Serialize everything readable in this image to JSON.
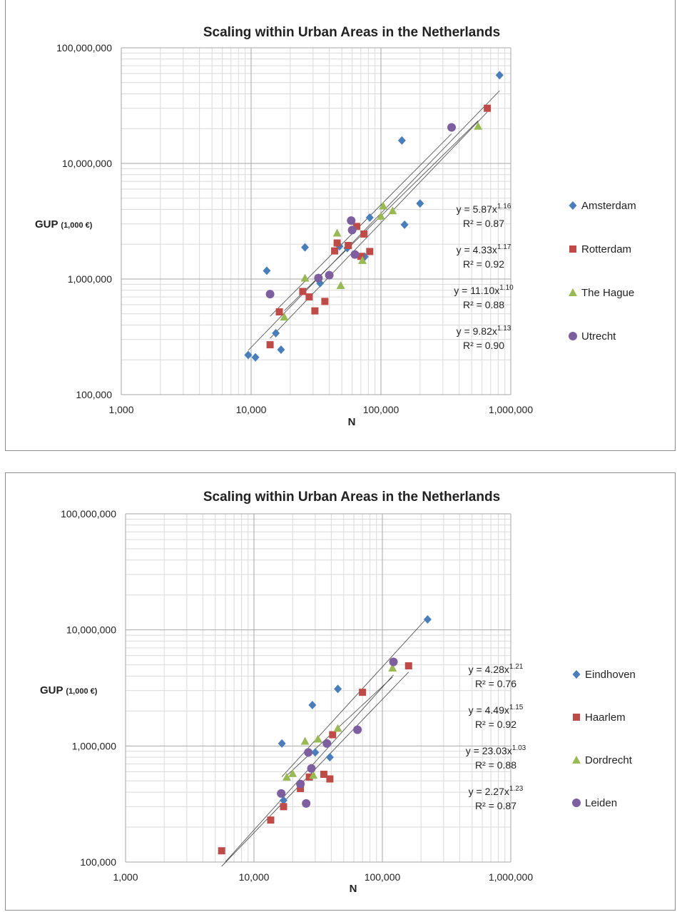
{
  "chart_data": [
    {
      "type": "scatter",
      "title": "Scaling within Urban Areas in the Netherlands",
      "xlabel": "N",
      "ylabel": "GUP",
      "ylabel_unit": "(1,000 €)",
      "xscale": "log",
      "yscale": "log",
      "xlim": [
        1000,
        1000000
      ],
      "ylim": [
        100000,
        100000000
      ],
      "x_ticks": [
        "1,000",
        "10,000",
        "100,000",
        "1,000,000"
      ],
      "y_ticks": [
        "100,000",
        "1,000,000",
        "10,000,000",
        "100,000,000"
      ],
      "grid": true,
      "legend_position": "right",
      "series": [
        {
          "name": "Amsterdam",
          "marker": "diamond",
          "color": "#4a7ebb",
          "points": [
            [
              9500,
              220000
            ],
            [
              10800,
              210000
            ],
            [
              13200,
              1180000
            ],
            [
              15500,
              340000
            ],
            [
              17000,
              245000
            ],
            [
              26000,
              1880000
            ],
            [
              34000,
              920000
            ],
            [
              48000,
              1920000
            ],
            [
              55000,
              1850000
            ],
            [
              75000,
              1560000
            ],
            [
              82000,
              3400000
            ],
            [
              145000,
              15800000
            ],
            [
              152000,
              2950000
            ],
            [
              200000,
              4500000
            ],
            [
              820000,
              58000000
            ]
          ]
        },
        {
          "name": "Rotterdam",
          "marker": "square",
          "color": "#be4b48",
          "points": [
            [
              14000,
              270000
            ],
            [
              16500,
              520000
            ],
            [
              25000,
              780000
            ],
            [
              28000,
              700000
            ],
            [
              31000,
              530000
            ],
            [
              37000,
              640000
            ],
            [
              44000,
              1750000
            ],
            [
              46000,
              2050000
            ],
            [
              56000,
              1950000
            ],
            [
              65000,
              2850000
            ],
            [
              70000,
              1570000
            ],
            [
              74000,
              2450000
            ],
            [
              82000,
              1730000
            ],
            [
              660000,
              30000000
            ]
          ]
        },
        {
          "name": "The Hague",
          "marker": "triangle",
          "color": "#98b954",
          "points": [
            [
              18000,
              470000
            ],
            [
              26000,
              1020000
            ],
            [
              46000,
              2500000
            ],
            [
              49000,
              880000
            ],
            [
              72000,
              1450000
            ],
            [
              100000,
              3500000
            ],
            [
              104000,
              4300000
            ],
            [
              123000,
              3900000
            ],
            [
              560000,
              21000000
            ]
          ]
        },
        {
          "name": "Utrecht",
          "marker": "circle",
          "color": "#7d5fa0",
          "points": [
            [
              14000,
              740000
            ],
            [
              33000,
              1020000
            ],
            [
              40000,
              1080000
            ],
            [
              59000,
              3200000
            ],
            [
              60000,
              2650000
            ],
            [
              63000,
              1630000
            ],
            [
              350000,
              20500000
            ]
          ]
        }
      ],
      "equations": [
        {
          "base": "y = 5.87x",
          "exp": "1.16",
          "r2": "R² = 0.87"
        },
        {
          "base": "y = 4.33x",
          "exp": "1.17",
          "r2": "R² = 0.92"
        },
        {
          "base": "y = 11.10x",
          "exp": "1.10",
          "r2": "R² = 0.88"
        },
        {
          "base": "y = 9.82x",
          "exp": "1.13",
          "r2": "R² = 0.90"
        }
      ],
      "trendlines": [
        {
          "a": 5.87,
          "b": 1.16,
          "x": [
            9500,
            820000
          ]
        },
        {
          "a": 4.33,
          "b": 1.17,
          "x": [
            14000,
            660000
          ]
        },
        {
          "a": 11.1,
          "b": 1.1,
          "x": [
            18000,
            560000
          ]
        },
        {
          "a": 9.82,
          "b": 1.13,
          "x": [
            14000,
            350000
          ]
        }
      ]
    },
    {
      "type": "scatter",
      "title": "Scaling within Urban Areas in the Netherlands",
      "xlabel": "N",
      "ylabel": "GUP",
      "ylabel_unit": "(1,000 €)",
      "xscale": "log",
      "yscale": "log",
      "xlim": [
        1000,
        1000000
      ],
      "ylim": [
        100000,
        100000000
      ],
      "x_ticks": [
        "1,000",
        "10,000",
        "100,000",
        "1,000,000"
      ],
      "y_ticks": [
        "100,000",
        "1,000,000",
        "10,000,000",
        "100,000,000"
      ],
      "grid": true,
      "legend_position": "right",
      "series": [
        {
          "name": "Eindhoven",
          "marker": "diamond",
          "color": "#4a7ebb",
          "points": [
            [
              16500,
              1050000
            ],
            [
              17000,
              340000
            ],
            [
              28500,
              2250000
            ],
            [
              30000,
              880000
            ],
            [
              39000,
              800000
            ],
            [
              45000,
              3100000
            ],
            [
              225000,
              12300000
            ]
          ]
        },
        {
          "name": "Haarlem",
          "marker": "square",
          "color": "#be4b48",
          "points": [
            [
              5600,
              125000
            ],
            [
              13500,
              230000
            ],
            [
              17000,
              300000
            ],
            [
              23000,
              430000
            ],
            [
              27000,
              540000
            ],
            [
              35000,
              570000
            ],
            [
              39000,
              520000
            ],
            [
              41000,
              1250000
            ],
            [
              70000,
              2900000
            ],
            [
              160000,
              4900000
            ]
          ]
        },
        {
          "name": "Dordrecht",
          "marker": "triangle",
          "color": "#98b954",
          "points": [
            [
              18000,
              540000
            ],
            [
              20000,
              580000
            ],
            [
              25000,
              1100000
            ],
            [
              29000,
              560000
            ],
            [
              31500,
              1150000
            ],
            [
              45000,
              1420000
            ],
            [
              120000,
              4700000
            ]
          ]
        },
        {
          "name": "Leiden",
          "marker": "circle",
          "color": "#7d5fa0",
          "points": [
            [
              16300,
              390000
            ],
            [
              23000,
              470000
            ],
            [
              25500,
              320000
            ],
            [
              26500,
              880000
            ],
            [
              28000,
              640000
            ],
            [
              37000,
              1050000
            ],
            [
              64000,
              1380000
            ],
            [
              122000,
              5300000
            ]
          ]
        }
      ],
      "equations": [
        {
          "base": "y = 4.28x",
          "exp": "1.21",
          "r2": "R² = 0.76"
        },
        {
          "base": "y = 4.49x",
          "exp": "1.15",
          "r2": "R² = 0.92"
        },
        {
          "base": "y = 23.03x",
          "exp": "1.03",
          "r2": "R² = 0.88"
        },
        {
          "base": "y = 2.27x",
          "exp": "1.23",
          "r2": "R² = 0.87"
        }
      ],
      "trendlines": [
        {
          "a": 4.28,
          "b": 1.21,
          "x": [
            16500,
            225000
          ]
        },
        {
          "a": 4.49,
          "b": 1.15,
          "x": [
            5600,
            160000
          ]
        },
        {
          "a": 23.03,
          "b": 1.03,
          "x": [
            18000,
            120000
          ]
        },
        {
          "a": 2.27,
          "b": 1.23,
          "x": [
            6000,
            122000
          ]
        }
      ]
    }
  ]
}
